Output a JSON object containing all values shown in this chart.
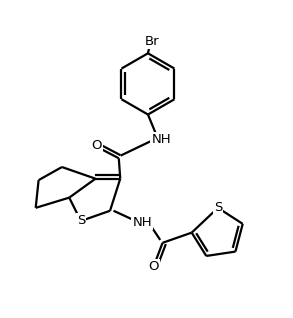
{
  "background_color": "#ffffff",
  "line_color": "#000000",
  "line_width": 1.6,
  "font_size": 9.5,
  "figsize": [
    2.93,
    3.18
  ],
  "dpi": 100,
  "xlim": [
    0,
    10
  ],
  "ylim": [
    0,
    10.85
  ]
}
